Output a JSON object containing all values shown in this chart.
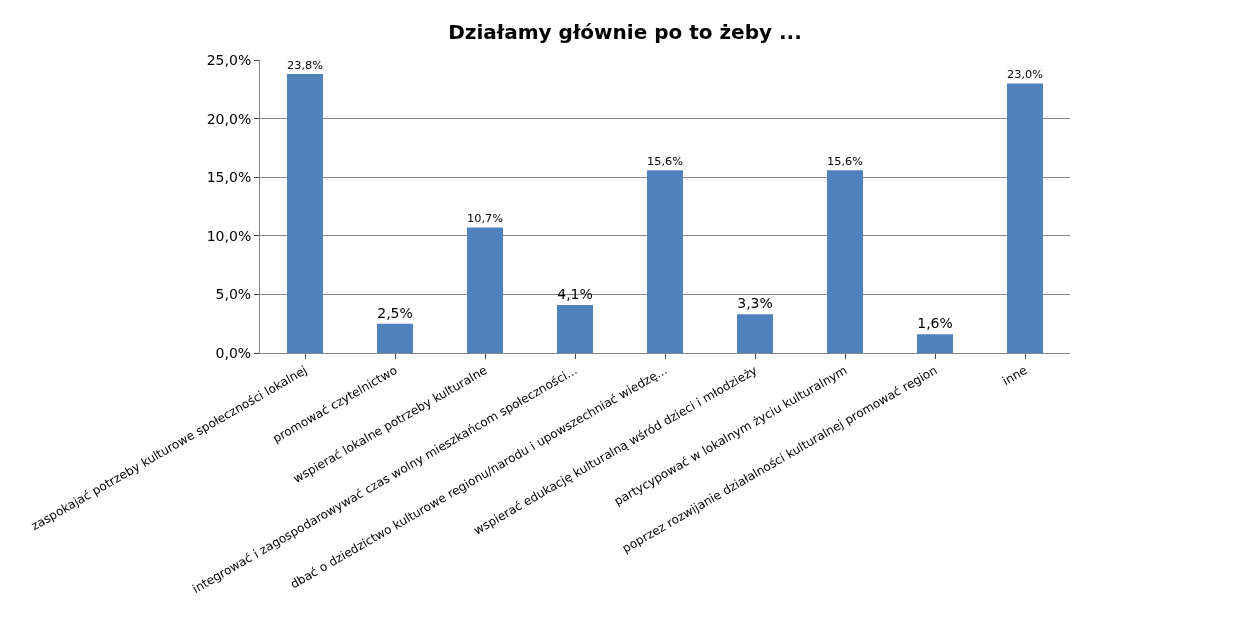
{
  "chart_data": {
    "type": "bar",
    "title": "Działamy głównie po to żeby ...",
    "categories": [
      "zaspokajać potrzeby kulturowe społeczności lokalnej",
      "promować czytelnictwo",
      "wspierać lokalne potrzeby kulturalne",
      "integrować i zagospodarowywać czas wolny mieszkańcom społeczności...",
      "dbać o dziedzictwo kulturowe regionu/narodu i upowszechniać wiedzę...",
      "wspierać edukację kulturalną wśród dzieci i młodzieży",
      "partycypować w lokalnym życiu kulturalnym",
      "poprzez rozwijanie działalności kulturalnej promować region",
      "inne"
    ],
    "values": [
      23.8,
      2.5,
      10.7,
      4.1,
      15.6,
      3.3,
      15.6,
      1.6,
      23.0
    ],
    "value_labels": [
      "23,8%",
      "2,5%",
      "10,7%",
      "4,1%",
      "15,6%",
      "3,3%",
      "15,6%",
      "1,6%",
      "23,0%"
    ],
    "color": "#4f81bd",
    "ylim": [
      0,
      25
    ],
    "yticks": [
      {
        "value": 0,
        "label": "0,0%"
      },
      {
        "value": 5,
        "label": "5,0%"
      },
      {
        "value": 10,
        "label": "10,0%"
      },
      {
        "value": 15,
        "label": "15,0%"
      },
      {
        "value": 20,
        "label": "20,0%"
      },
      {
        "value": 25,
        "label": "25,0%"
      }
    ],
    "grid": "y",
    "legend": false
  }
}
